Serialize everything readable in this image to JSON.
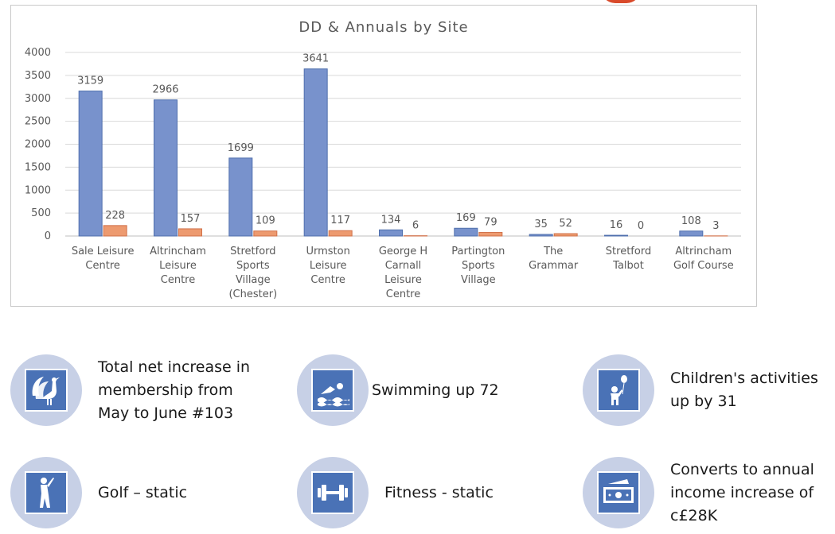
{
  "chart_data": {
    "type": "bar",
    "title": "DD & Annuals by Site",
    "categories": [
      "Sale Leisure\nCentre",
      "Altrincham\nLeisure\nCentre",
      "Stretford\nSports\nVillage\n(Chester)",
      "Urmston\nLeisure\nCentre",
      "George H\nCarnall\nLeisure\nCentre",
      "Partington\nSports\nVillage",
      "The\nGrammar",
      "Stretford\nTalbot",
      "Altrincham\nGolf Course"
    ],
    "series": [
      {
        "values": [
          3159,
          2966,
          1699,
          3641,
          134,
          169,
          35,
          16,
          108
        ],
        "color": "#7892cc"
      },
      {
        "values": [
          228,
          157,
          109,
          117,
          6,
          79,
          52,
          0,
          3
        ],
        "color": "#ed9a6f"
      }
    ],
    "ylim": [
      0,
      4000
    ],
    "yticks": [
      0,
      500,
      1000,
      1500,
      2000,
      2500,
      3000,
      3500,
      4000
    ],
    "grid": true,
    "legend": "none",
    "data_labels": true
  },
  "stats": [
    {
      "icon": "peacock-icon",
      "text": "Total net increase in\nmembership from\nMay to June #103"
    },
    {
      "icon": "swimmer-icon",
      "text": "Swimming up 72"
    },
    {
      "icon": "child-balloon-icon",
      "text": "Children's activities\nup by 31"
    },
    {
      "icon": "golfer-icon",
      "text": "Golf – static"
    },
    {
      "icon": "dumbbell-icon",
      "text": "Fitness - static"
    },
    {
      "icon": "money-icon",
      "text": "Converts to annual\nincome increase of\nc£28K"
    }
  ],
  "colors": {
    "circle": "#c7d0e6",
    "icon_fill": "#4a72b6"
  }
}
